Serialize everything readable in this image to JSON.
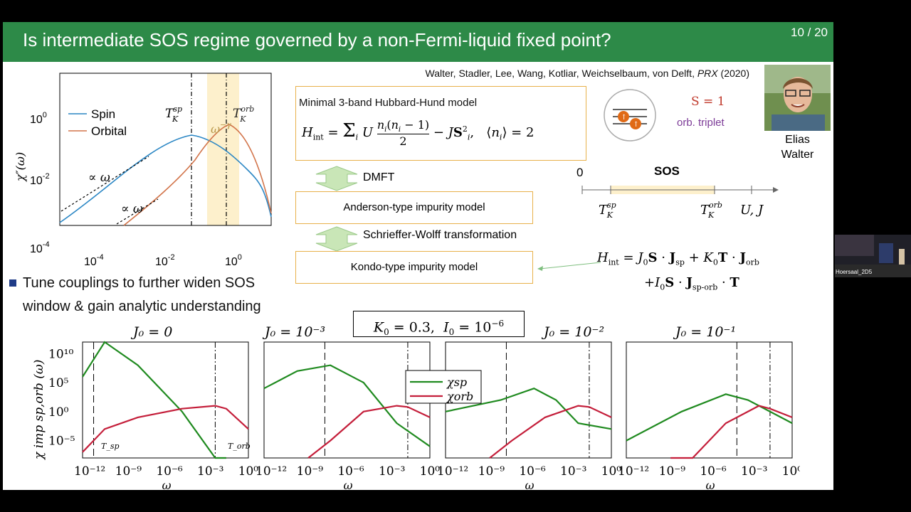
{
  "slide": {
    "title": "Is intermediate SOS regime governed by a non-Fermi-liquid fixed point?",
    "page": "10 / 20",
    "citation_authors": "Walter, Stadler, Lee, Wang, Kotliar, Weichselbaum, von Delft,",
    "citation_journal": "PRX",
    "citation_year": "(2020)",
    "person": {
      "name_line1": "Elias",
      "name_line2": "Walter"
    },
    "bullet_text_line1": "Tune couplings to further widen SOS",
    "bullet_text_line2": "window & gain analytic understanding",
    "model_box_title": "Minimal 3-band Hubbard-Hund model",
    "arrow1_label": "DMFT",
    "anderson_label": "Anderson-type impurity model",
    "arrow2_label": "Schrieffer-Wolff transformation",
    "kondo_label": "Kondo-type impurity model",
    "spin_label": "S = 1",
    "triplet_label": "orb. triplet",
    "sos_label": "SOS",
    "axis_zero": "0",
    "params_box": "K0 = 0.3, I0 = 10^-6",
    "video_caption": "Hoersaal_2D5"
  },
  "colors": {
    "title_bg": "#2d8a48",
    "spin": "#2a86c4",
    "orbital": "#d2744a",
    "chi_sp": "#1f8a1f",
    "chi_orb": "#c41e3a",
    "highlight": "#fdf0cc",
    "box_border": "#e8b14a",
    "arrow_fill": "#c9e6b7"
  },
  "chart_data": [
    {
      "type": "line",
      "title": "",
      "xlabel": "ω",
      "ylabel": "χ''(ω)",
      "xscale": "log",
      "yscale": "log",
      "xlim": [
        1e-05,
        5
      ],
      "ylim": [
        0.0001,
        5
      ],
      "x_ticks": [
        "10^-4",
        "10^-2",
        "10^0"
      ],
      "y_ticks": [
        "10^0",
        "10^-2",
        "10^-4"
      ],
      "legend": "top-left",
      "series": [
        {
          "name": "Spin",
          "color": "#2a86c4",
          "points": [
            [
              1e-05,
              0.00012
            ],
            [
              0.0001,
              0.0015
            ],
            [
              0.001,
              0.015
            ],
            [
              0.01,
              0.12
            ],
            [
              0.05,
              0.3
            ],
            [
              0.2,
              0.12
            ],
            [
              0.6,
              0.025
            ],
            [
              1.2,
              0.012
            ],
            [
              3,
              0.004
            ],
            [
              5,
              0.0008
            ]
          ]
        },
        {
          "name": "Orbital",
          "color": "#d2744a",
          "points": [
            [
              0.0005,
              0.0001
            ],
            [
              0.002,
              0.0007
            ],
            [
              0.01,
              0.004
            ],
            [
              0.05,
              0.02
            ],
            [
              0.2,
              0.08
            ],
            [
              0.5,
              0.14
            ],
            [
              1,
              0.06
            ],
            [
              2,
              0.01
            ],
            [
              5,
              0.0005
            ]
          ]
        }
      ],
      "annotations": [
        "T_K^sp",
        "T_K^orb",
        "ω^-γ",
        "∝ ω",
        "∝ ω"
      ]
    },
    {
      "type": "line",
      "title": "J0 = 0",
      "xlabel": "ω",
      "ylabel": "χ^imp_sp,orb(ω)",
      "xscale": "log",
      "yscale": "log",
      "x_ticks": [
        "10^-12",
        "10^-9",
        "10^-6",
        "10^-3",
        "10^0"
      ],
      "y_ticks": [
        "10^10",
        "10^5",
        "10^0",
        "10^-5"
      ],
      "annotations": [
        "T_sp",
        "T_orb"
      ],
      "series": [
        {
          "name": "χsp",
          "points": [
            [
              -15,
              6
            ],
            [
              -13,
              12
            ],
            [
              -10,
              8
            ],
            [
              -6,
              0
            ],
            [
              -3,
              -8
            ],
            [
              -2,
              -10
            ]
          ]
        },
        {
          "name": "χorb",
          "points": [
            [
              -15,
              -7
            ],
            [
              -13,
              -3
            ],
            [
              -10,
              -1
            ],
            [
              -6,
              0.5
            ],
            [
              -3,
              1
            ],
            [
              -2,
              0.5
            ],
            [
              0,
              -3
            ]
          ]
        }
      ]
    },
    {
      "type": "line",
      "title": "J0 = 10^-3",
      "xlabel": "ω",
      "x_ticks": [
        "10^-12",
        "10^-9",
        "10^-6",
        "10^-3",
        "10^0"
      ],
      "legend": "top-right",
      "series": [
        {
          "name": "χsp",
          "points": [
            [
              -15,
              4
            ],
            [
              -12,
              7
            ],
            [
              -9,
              8
            ],
            [
              -6,
              5
            ],
            [
              -3,
              -2
            ],
            [
              0,
              -6
            ]
          ]
        },
        {
          "name": "χorb",
          "points": [
            [
              -11,
              -14
            ],
            [
              -9,
              -5
            ],
            [
              -6,
              0
            ],
            [
              -3,
              1
            ],
            [
              -2,
              0.8
            ],
            [
              0,
              -1
            ]
          ]
        }
      ]
    },
    {
      "type": "line",
      "title": "J0 = 10^-2",
      "xlabel": "ω",
      "x_ticks": [
        "10^-12",
        "10^-9",
        "10^-6",
        "10^-3",
        "10^0"
      ],
      "series": [
        {
          "name": "χsp",
          "points": [
            [
              -15,
              0
            ],
            [
              -10,
              2
            ],
            [
              -7,
              4
            ],
            [
              -5,
              2
            ],
            [
              -3,
              -2
            ],
            [
              0,
              -3
            ]
          ]
        },
        {
          "name": "χorb",
          "points": [
            [
              -11,
              -14
            ],
            [
              -9,
              -5
            ],
            [
              -6,
              -1
            ],
            [
              -3,
              1
            ],
            [
              -2,
              0.8
            ],
            [
              0,
              -1
            ]
          ]
        }
      ]
    },
    {
      "type": "line",
      "title": "J0 = 10^-1",
      "xlabel": "ω",
      "x_ticks": [
        "10^-12",
        "10^-9",
        "10^-6",
        "10^-3",
        "10^0"
      ],
      "series": [
        {
          "name": "χsp",
          "points": [
            [
              -15,
              -5
            ],
            [
              -10,
              0
            ],
            [
              -6,
              3
            ],
            [
              -4,
              2
            ],
            [
              -3,
              1
            ],
            [
              0,
              -2
            ]
          ]
        },
        {
          "name": "χorb",
          "points": [
            [
              -11,
              -14
            ],
            [
              -9,
              -8
            ],
            [
              -6,
              -2
            ],
            [
              -3,
              1
            ],
            [
              -2,
              0.5
            ],
            [
              0,
              -1
            ]
          ]
        }
      ]
    }
  ]
}
